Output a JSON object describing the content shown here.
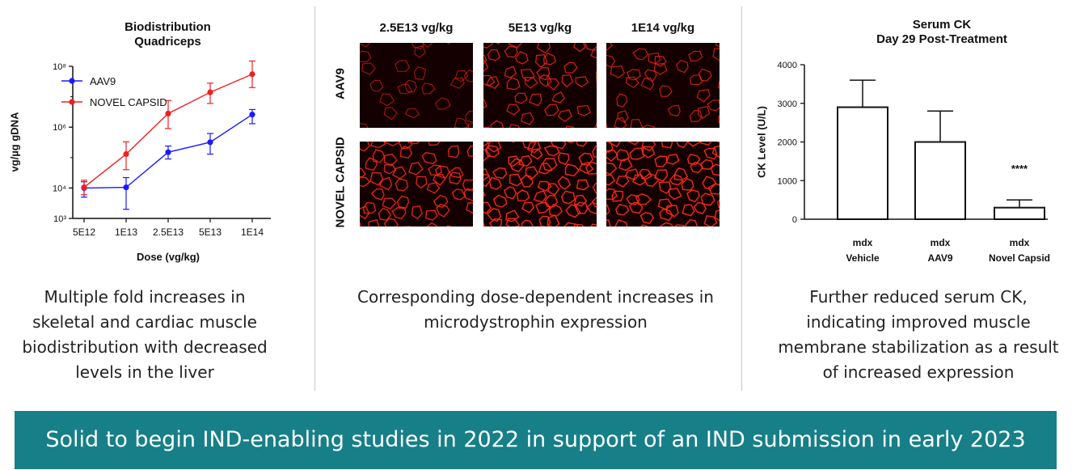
{
  "chart_data": [
    {
      "type": "line",
      "title": "Biodistribution\nQuadriceps",
      "xlabel": "Dose (vg/kg)",
      "ylabel": "vg/µg gDNA",
      "categories": [
        "5E12",
        "1E13",
        "2.5E13",
        "5E13",
        "1E14"
      ],
      "yscale": "log",
      "ylim": [
        1000,
        100000000
      ],
      "ytick_labels": [
        "10³",
        "10⁴",
        "10⁶",
        "10⁸"
      ],
      "legend": "top-left",
      "series": [
        {
          "name": "AAV9",
          "color": "#1a1aff",
          "values": [
            10000,
            10500,
            150000,
            320000,
            2600000
          ],
          "err_low": [
            5000,
            2000,
            90000,
            130000,
            1300000
          ],
          "err_high": [
            16000,
            22000,
            240000,
            620000,
            3800000
          ]
        },
        {
          "name": "NOVEL CAPSID",
          "color": "#ee2020",
          "values": [
            10500,
            130000,
            2800000,
            14000000,
            55000000
          ],
          "err_low": [
            6000,
            40000,
            900000,
            6000000,
            20000000
          ],
          "err_high": [
            18000,
            330000,
            7500000,
            28000000,
            150000000
          ]
        }
      ]
    },
    {
      "type": "bar",
      "title": "Serum CK\nDay 29 Post-Treatment",
      "ylabel": "CK Level (U/L)",
      "categories": [
        "mdx\nVehicle",
        "mdx\nAAV9",
        "mdx\nNovel Capsid"
      ],
      "values": [
        2900,
        2000,
        300
      ],
      "err_high": [
        3600,
        2800,
        500
      ],
      "ylim": [
        0,
        4000
      ],
      "yticks": [
        0,
        1000,
        2000,
        3000,
        4000
      ],
      "annotations": [
        {
          "category": "mdx\nNovel Capsid",
          "text": "****"
        }
      ]
    }
  ],
  "image_grid": {
    "columns": [
      "2.5E13 vg/kg",
      "5E13 vg/kg",
      "1E14 vg/kg"
    ],
    "rows": [
      "AAV9",
      "NOVEL CAPSID"
    ]
  },
  "captions": {
    "left": "Multiple fold increases in skeletal and cardiac muscle biodistribution with decreased levels in the liver",
    "middle": "Corresponding dose-dependent increases in microdystrophin expression",
    "right": "Further reduced serum CK, indicating improved muscle membrane stabilization as a result of increased expression"
  },
  "banner": {
    "text": "Solid to begin IND-enabling studies in 2022 in support of an IND submission in early 2023",
    "color": "#167f88"
  }
}
